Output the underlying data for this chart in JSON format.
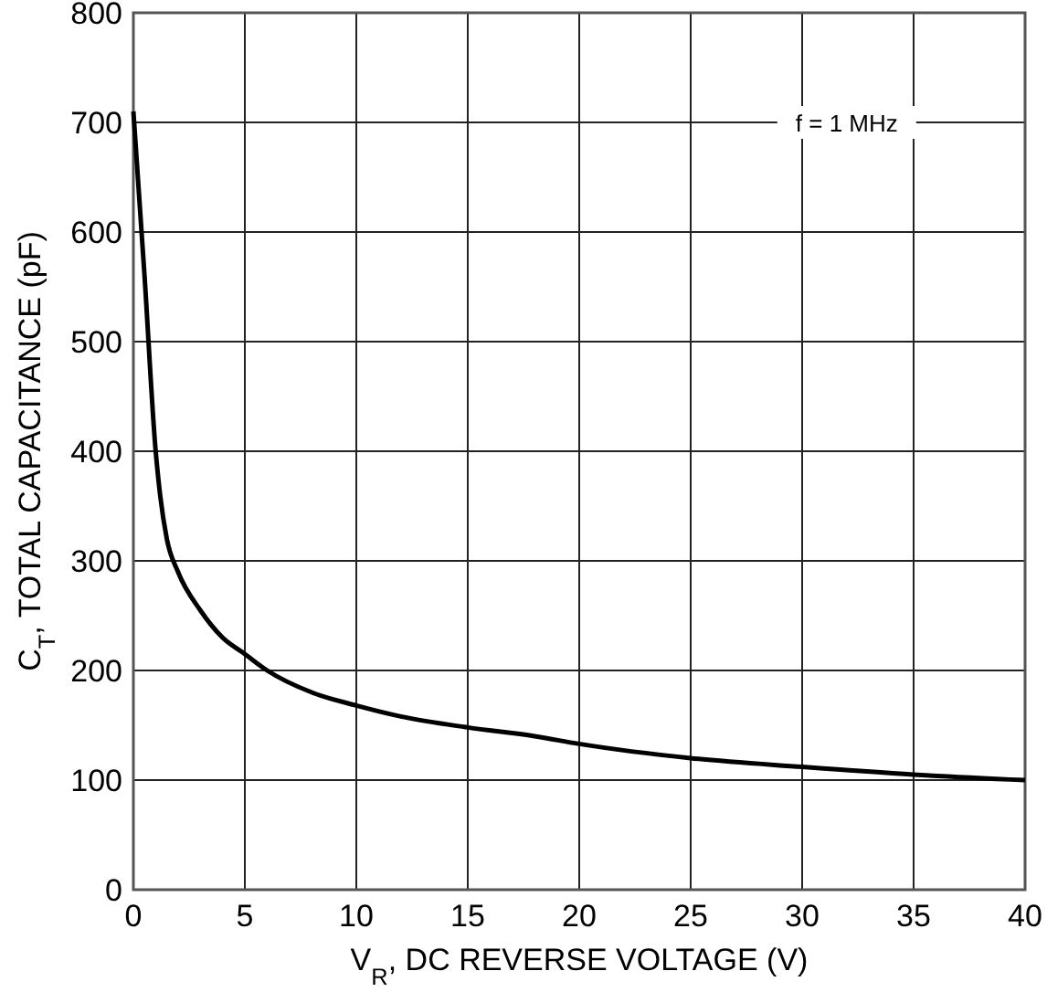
{
  "chart_data": {
    "type": "line",
    "xlabel": "V$_{R}$, DC REVERSE VOLTAGE (V)",
    "ylabel": "C$_{T}$, TOTAL CAPACITANCE (pF)",
    "annotations": [
      "f = 1 MHz"
    ],
    "x": [
      0,
      0.5,
      1,
      1.2,
      1.5,
      2,
      3,
      4,
      5,
      6,
      8,
      10,
      12,
      15,
      18,
      20,
      25,
      30,
      35,
      40
    ],
    "series": [
      {
        "color": "#000000",
        "values": [
          710,
          560,
          400,
          360,
          320,
          290,
          255,
          230,
          215,
          200,
          180,
          168,
          158,
          148,
          140,
          133,
          120,
          112,
          105,
          100
        ]
      }
    ],
    "xlim": [
      0,
      40
    ],
    "xticks": [
      0,
      5,
      10,
      15,
      20,
      25,
      30,
      35,
      40
    ],
    "ylim": [
      0,
      800
    ],
    "yticks": [
      0,
      100,
      200,
      300,
      400,
      500,
      600,
      700,
      800
    ],
    "grid": true,
    "line_style": "solid",
    "marker": "none"
  }
}
